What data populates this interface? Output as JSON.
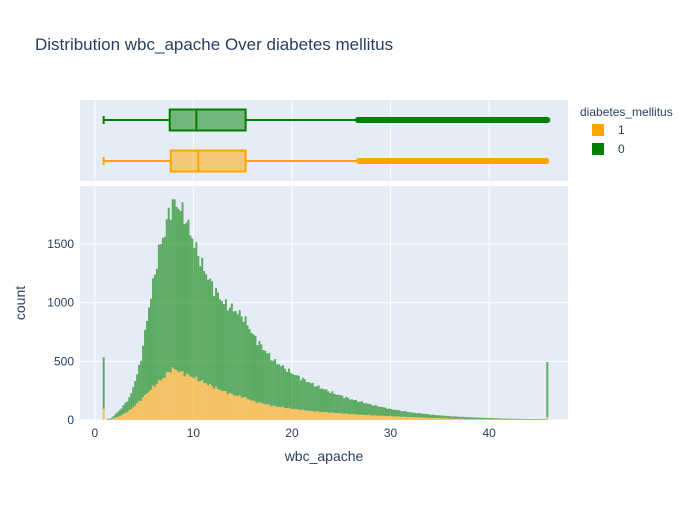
{
  "chart_data": {
    "type": "histogram",
    "title": "Distribution wbc_apache Over diabetes mellitus",
    "xlabel": "wbc_apache",
    "ylabel": "count",
    "x_ticks": [
      0,
      10,
      20,
      30,
      40
    ],
    "y_ticks": [
      0,
      500,
      1000,
      1500
    ],
    "xlim": [
      -1.5,
      48
    ],
    "ylim": [
      0,
      1995
    ],
    "barmode": "stacked",
    "legend": {
      "title": "diabetes_mellitus",
      "placement": "top-right"
    },
    "series": [
      {
        "name": "1",
        "color": "#FFA500",
        "x": [
          0.9,
          1.5,
          2.5,
          3.5,
          4.5,
          5.5,
          6.5,
          7,
          7.5,
          8,
          8.5,
          9,
          10,
          11,
          12,
          13,
          14,
          15,
          16,
          17,
          18,
          20,
          22,
          24,
          26,
          28,
          30,
          32,
          34,
          36,
          38,
          40,
          42,
          44,
          45.5,
          45.9
        ],
        "counts": [
          95,
          5,
          35,
          85,
          165,
          255,
          335,
          370,
          420,
          435,
          410,
          395,
          360,
          320,
          280,
          245,
          215,
          195,
          160,
          140,
          120,
          95,
          75,
          62,
          50,
          40,
          32,
          25,
          18,
          12,
          9,
          6,
          4,
          3,
          3,
          25
        ],
        "box": {
          "min": 0.9,
          "q1": 7.7,
          "median": 10.5,
          "q3": 15.3,
          "upper_fence": 26.8,
          "max": 45.8
        }
      },
      {
        "name": "0",
        "color": "#008000",
        "x": [
          0.9,
          1.5,
          2.5,
          3.5,
          4.5,
          5.5,
          6.5,
          7,
          7.5,
          8,
          8.5,
          9,
          10,
          11,
          12,
          13,
          14,
          15,
          16,
          17,
          18,
          20,
          22,
          24,
          26,
          28,
          30,
          32,
          34,
          36,
          38,
          40,
          42,
          44,
          45.5,
          45.9
        ],
        "counts": [
          440,
          5,
          55,
          115,
          310,
          760,
          1150,
          1230,
          1380,
          1420,
          1400,
          1350,
          1140,
          960,
          840,
          750,
          730,
          680,
          560,
          470,
          390,
          300,
          230,
          170,
          125,
          90,
          60,
          40,
          28,
          20,
          14,
          10,
          7,
          5,
          5,
          470
        ],
        "box": {
          "min": 0.9,
          "q1": 7.6,
          "median": 10.3,
          "q3": 15.3,
          "upper_fence": 26.7,
          "max": 45.9
        }
      }
    ]
  }
}
